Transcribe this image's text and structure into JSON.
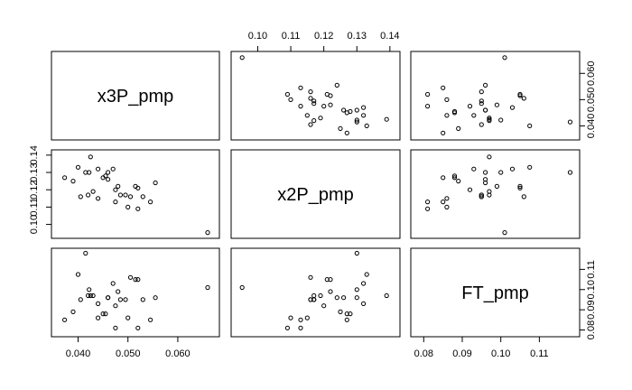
{
  "chart_data": {
    "type": "scatter",
    "subtype": "scatterplot-matrix",
    "variables": [
      "x3P_pmp",
      "x2P_pmp",
      "FT_pmp"
    ],
    "axes": {
      "x3P_pmp": {
        "range": [
          0.036,
          0.067
        ],
        "ticks": [
          0.04,
          0.05,
          0.06
        ],
        "tick_labels": [
          "0.040",
          "0.050",
          "0.060"
        ]
      },
      "x2P_pmp": {
        "range": [
          0.094,
          0.141
        ],
        "ticks": [
          0.1,
          0.11,
          0.12,
          0.13,
          0.14
        ],
        "tick_labels": [
          "0.10",
          "0.11",
          "0.12",
          "0.13",
          "0.14"
        ]
      },
      "FT_pmp": {
        "range": [
          0.0784,
          0.1187
        ],
        "ticks": [
          0.08,
          0.09,
          0.1,
          0.11
        ],
        "tick_labels": [
          "0.08",
          "0.09",
          "0.10",
          "0.11"
        ]
      }
    },
    "diagonal_value_ticks": {
      "x3P_pmp": [
        "0.040",
        "0.050"
      ],
      "FT_pmp": [
        "0.08",
        "0.10"
      ]
    },
    "observations": [
      {
        "x3P_pmp": 0.04,
        "x2P_pmp": 0.133,
        "FT_pmp": 0.1075
      },
      {
        "x3P_pmp": 0.0415,
        "x2P_pmp": 0.13,
        "FT_pmp": 0.118
      },
      {
        "x3P_pmp": 0.0425,
        "x2P_pmp": 0.139,
        "FT_pmp": 0.097
      },
      {
        "x3P_pmp": 0.047,
        "x2P_pmp": 0.132,
        "FT_pmp": 0.103
      },
      {
        "x3P_pmp": 0.0422,
        "x2P_pmp": 0.13,
        "FT_pmp": 0.1
      },
      {
        "x3P_pmp": 0.0515,
        "x2P_pmp": 0.122,
        "FT_pmp": 0.105
      },
      {
        "x3P_pmp": 0.042,
        "x2P_pmp": 0.117,
        "FT_pmp": 0.097
      },
      {
        "x3P_pmp": 0.0405,
        "x2P_pmp": 0.116,
        "FT_pmp": 0.095
      },
      {
        "x3P_pmp": 0.043,
        "x2P_pmp": 0.119,
        "FT_pmp": 0.097
      },
      {
        "x3P_pmp": 0.046,
        "x2P_pmp": 0.126,
        "FT_pmp": 0.096
      },
      {
        "x3P_pmp": 0.048,
        "x2P_pmp": 0.122,
        "FT_pmp": 0.099
      },
      {
        "x3P_pmp": 0.0505,
        "x2P_pmp": 0.116,
        "FT_pmp": 0.106
      },
      {
        "x3P_pmp": 0.0475,
        "x2P_pmp": 0.12,
        "FT_pmp": 0.092
      },
      {
        "x3P_pmp": 0.0495,
        "x2P_pmp": 0.117,
        "FT_pmp": 0.095
      },
      {
        "x3P_pmp": 0.052,
        "x2P_pmp": 0.121,
        "FT_pmp": 0.105
      },
      {
        "x3P_pmp": 0.0555,
        "x2P_pmp": 0.124,
        "FT_pmp": 0.096
      },
      {
        "x3P_pmp": 0.045,
        "x2P_pmp": 0.127,
        "FT_pmp": 0.088
      },
      {
        "x3P_pmp": 0.044,
        "x2P_pmp": 0.132,
        "FT_pmp": 0.093
      },
      {
        "x3P_pmp": 0.0455,
        "x2P_pmp": 0.128,
        "FT_pmp": 0.088
      },
      {
        "x3P_pmp": 0.039,
        "x2P_pmp": 0.125,
        "FT_pmp": 0.089
      },
      {
        "x3P_pmp": 0.046,
        "x2P_pmp": 0.13,
        "FT_pmp": 0.096
      },
      {
        "x3P_pmp": 0.053,
        "x2P_pmp": 0.116,
        "FT_pmp": 0.095
      },
      {
        "x3P_pmp": 0.05,
        "x2P_pmp": 0.11,
        "FT_pmp": 0.086
      },
      {
        "x3P_pmp": 0.052,
        "x2P_pmp": 0.109,
        "FT_pmp": 0.081
      },
      {
        "x3P_pmp": 0.0545,
        "x2P_pmp": 0.113,
        "FT_pmp": 0.085
      },
      {
        "x3P_pmp": 0.0475,
        "x2P_pmp": 0.113,
        "FT_pmp": 0.081
      },
      {
        "x3P_pmp": 0.0485,
        "x2P_pmp": 0.117,
        "FT_pmp": 0.095
      },
      {
        "x3P_pmp": 0.066,
        "x2P_pmp": 0.0953,
        "FT_pmp": 0.101
      },
      {
        "x3P_pmp": 0.0373,
        "x2P_pmp": 0.127,
        "FT_pmp": 0.085
      },
      {
        "x3P_pmp": 0.044,
        "x2P_pmp": 0.115,
        "FT_pmp": 0.086
      }
    ],
    "title": "",
    "xlabel": "",
    "ylabel": "",
    "grid": false,
    "legend": "none"
  }
}
